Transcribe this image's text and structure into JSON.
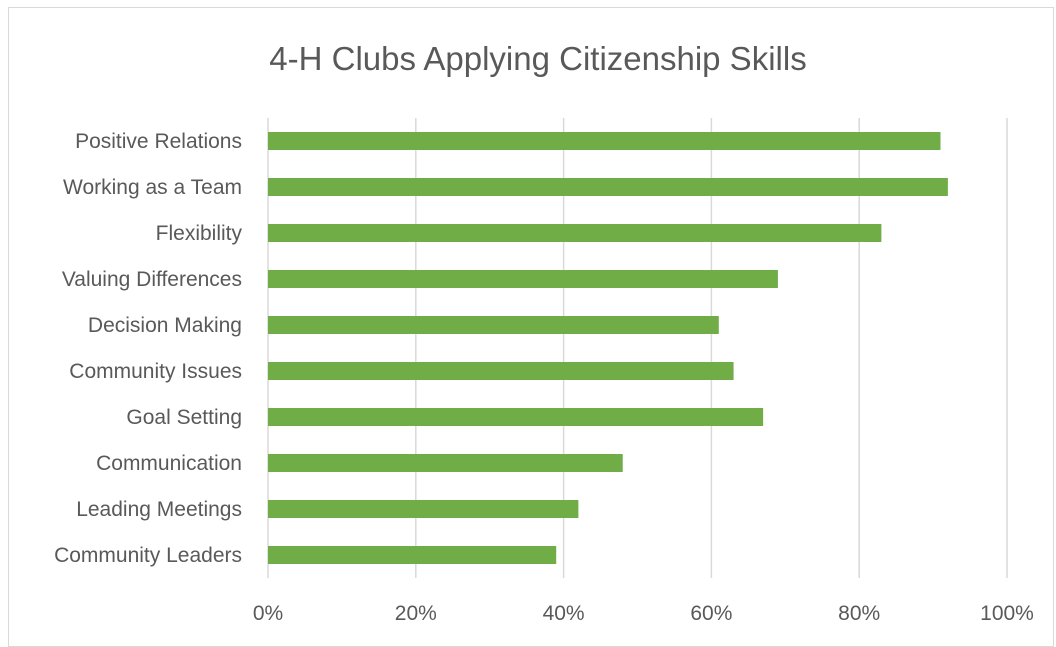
{
  "chart_data": {
    "type": "bar",
    "orientation": "horizontal",
    "title": "4-H Clubs Applying Citizenship Skills",
    "xlabel": "",
    "ylabel": "",
    "categories": [
      "Positive Relations",
      "Working as a Team",
      "Flexibility",
      "Valuing Differences",
      "Decision Making",
      "Community Issues",
      "Goal Setting",
      "Communication",
      "Leading Meetings",
      "Community Leaders"
    ],
    "values": [
      0.91,
      0.92,
      0.83,
      0.69,
      0.61,
      0.63,
      0.67,
      0.48,
      0.42,
      0.39
    ],
    "xlim": [
      0,
      1
    ],
    "x_ticks": [
      "0%",
      "20%",
      "40%",
      "60%",
      "80%",
      "100%"
    ],
    "bar_color": "#70ad47",
    "grid": true,
    "legend": "none"
  }
}
